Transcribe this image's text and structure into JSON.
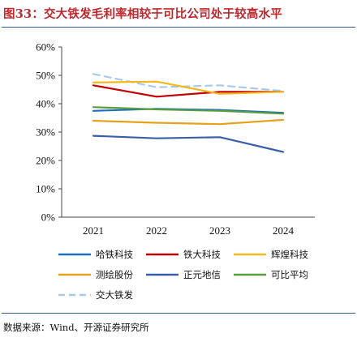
{
  "figure": {
    "title": "图33：交大铁发毛利率相较于可比公司处于较高水平",
    "source": "数据来源：Wind、开源证券研究所"
  },
  "chart_data": {
    "type": "line",
    "x": [
      "2021",
      "2022",
      "2023",
      "2024"
    ],
    "ylim": [
      0,
      60
    ],
    "yticks": [
      0,
      10,
      20,
      30,
      40,
      50,
      60
    ],
    "ytick_labels": [
      "0%",
      "10%",
      "20%",
      "30%",
      "40%",
      "50%",
      "60%"
    ],
    "grid": false,
    "legend_position": "bottom",
    "series": [
      {
        "name": "哈铁科技",
        "color": "#1f6fbf",
        "dash": false,
        "values": [
          37.5,
          38.2,
          37.8,
          36.8
        ]
      },
      {
        "name": "铁大科技",
        "color": "#c00000",
        "dash": false,
        "values": [
          46.5,
          42.5,
          44.2,
          44.2
        ]
      },
      {
        "name": "辉煌科技",
        "color": "#f2b81c",
        "dash": false,
        "values": [
          47.5,
          47.8,
          43.5,
          44.2
        ]
      },
      {
        "name": "测绘股份",
        "color": "#e3a21a",
        "dash": false,
        "values": [
          34.0,
          33.3,
          32.8,
          34.3
        ]
      },
      {
        "name": "正元地信",
        "color": "#3a5fa8",
        "dash": false,
        "values": [
          28.7,
          27.8,
          28.2,
          23.0
        ]
      },
      {
        "name": "可比平均",
        "color": "#5a9e3c",
        "dash": false,
        "values": [
          38.8,
          38.0,
          37.5,
          36.5
        ]
      },
      {
        "name": "交大铁发",
        "color": "#a9c8ec",
        "dash": true,
        "values": [
          50.5,
          45.8,
          46.5,
          44.5
        ]
      }
    ]
  }
}
